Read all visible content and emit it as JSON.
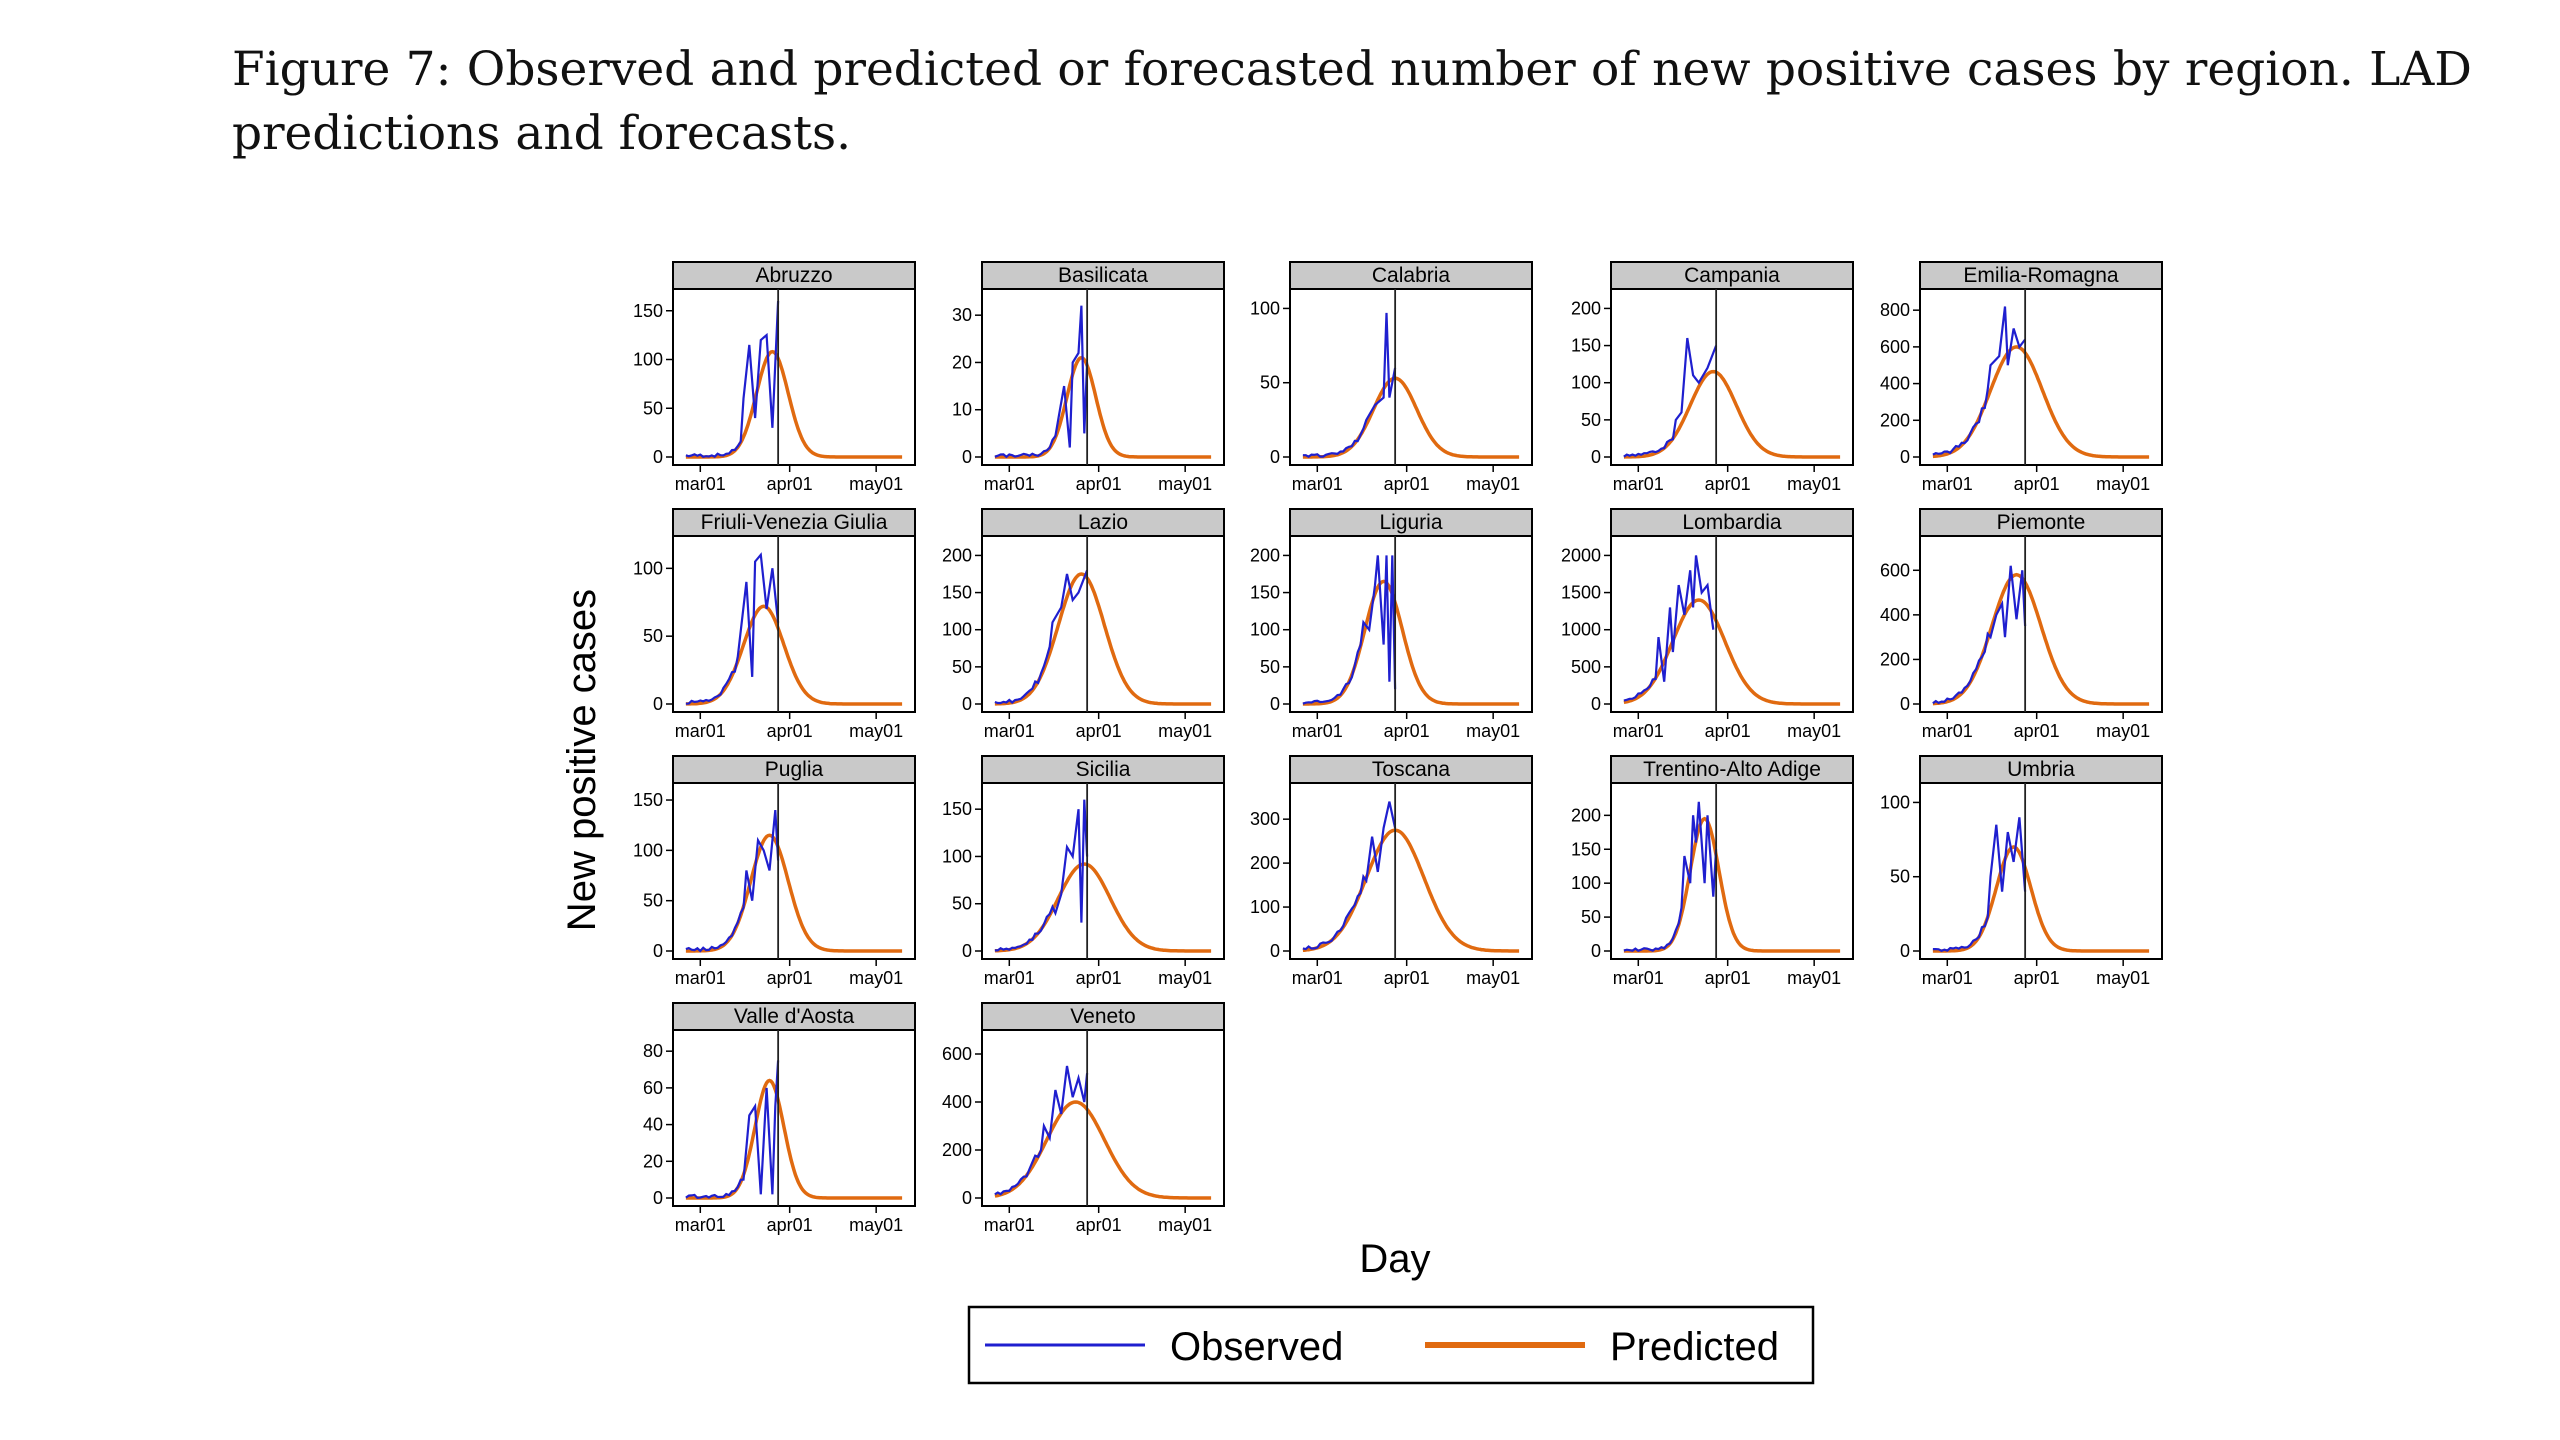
{
  "caption": {
    "text": "Figure 7: Observed and predicted or forecasted number of new positive cases by region. LAD predictions and forecasts."
  },
  "colors": {
    "observed": "#1f1fcf",
    "predicted": "#e06a10",
    "strip_fill": "#c9c9c9",
    "vline": "#222222"
  },
  "chart_data": {
    "type": "line",
    "xlabel": "Day",
    "ylabel": "New positive cases",
    "x_domain": [
      "2020-02-24",
      "2020-05-11"
    ],
    "x_ticks": [
      {
        "date": "2020-03-01",
        "label": "mar01"
      },
      {
        "date": "2020-04-01",
        "label": "apr01"
      },
      {
        "date": "2020-05-01",
        "label": "may01"
      }
    ],
    "vertical_line_date": "2020-03-28",
    "legend": {
      "position": "bottom",
      "entries": [
        "Observed",
        "Predicted"
      ]
    },
    "panels": [
      {
        "region": "Abruzzo",
        "ylim": [
          0,
          160
        ],
        "yticks": [
          0,
          50,
          100,
          150
        ],
        "vline": "2020-03-28",
        "pred_peak_date": "2020-03-26",
        "pred_peak": 108,
        "pred_sigma": 5.5,
        "observed_peaks": [
          [
            "2020-03-16",
            60
          ],
          [
            "2020-03-18",
            115
          ],
          [
            "2020-03-20",
            40
          ],
          [
            "2020-03-22",
            120
          ],
          [
            "2020-03-24",
            125
          ],
          [
            "2020-03-26",
            30
          ],
          [
            "2020-03-28",
            160
          ]
        ]
      },
      {
        "region": "Basilicata",
        "ylim": [
          0,
          33
        ],
        "yticks": [
          0,
          10,
          20,
          30
        ],
        "vline": "2020-03-28",
        "pred_peak_date": "2020-03-26",
        "pred_peak": 21,
        "pred_sigma": 5,
        "observed_peaks": [
          [
            "2020-03-18",
            8
          ],
          [
            "2020-03-20",
            15
          ],
          [
            "2020-03-22",
            2
          ],
          [
            "2020-03-23",
            20
          ],
          [
            "2020-03-25",
            22
          ],
          [
            "2020-03-26",
            32
          ],
          [
            "2020-03-27",
            5
          ],
          [
            "2020-03-28",
            20
          ]
        ]
      },
      {
        "region": "Calabria",
        "ylim": [
          0,
          105
        ],
        "yticks": [
          0,
          50,
          100
        ],
        "vline": "2020-03-28",
        "pred_peak_date": "2020-03-28",
        "pred_peak": 53,
        "pred_sigma": 7.5,
        "observed_peaks": [
          [
            "2020-03-18",
            25
          ],
          [
            "2020-03-21",
            35
          ],
          [
            "2020-03-24",
            40
          ],
          [
            "2020-03-25",
            97
          ],
          [
            "2020-03-26",
            40
          ],
          [
            "2020-03-28",
            60
          ]
        ]
      },
      {
        "region": "Campania",
        "ylim": [
          0,
          210
        ],
        "yticks": [
          0,
          50,
          100,
          150,
          200
        ],
        "vline": "2020-03-28",
        "pred_peak_date": "2020-03-27",
        "pred_peak": 115,
        "pred_sigma": 8,
        "observed_peaks": [
          [
            "2020-03-14",
            50
          ],
          [
            "2020-03-16",
            60
          ],
          [
            "2020-03-18",
            160
          ],
          [
            "2020-03-20",
            110
          ],
          [
            "2020-03-22",
            100
          ],
          [
            "2020-03-25",
            120
          ],
          [
            "2020-03-28",
            150
          ]
        ]
      },
      {
        "region": "Emilia-Romagna",
        "ylim": [
          0,
          850
        ],
        "yticks": [
          0,
          200,
          400,
          600,
          800
        ],
        "vline": "2020-03-28",
        "pred_peak_date": "2020-03-25",
        "pred_peak": 600,
        "pred_sigma": 9,
        "observed_peaks": [
          [
            "2020-03-16",
            500
          ],
          [
            "2020-03-19",
            550
          ],
          [
            "2020-03-21",
            820
          ],
          [
            "2020-03-22",
            500
          ],
          [
            "2020-03-24",
            700
          ],
          [
            "2020-03-26",
            600
          ],
          [
            "2020-03-28",
            640
          ]
        ]
      },
      {
        "region": "Friuli-Venezia Giulia",
        "ylim": [
          0,
          115
        ],
        "yticks": [
          0,
          50,
          100
        ],
        "vline": "2020-03-28",
        "pred_peak_date": "2020-03-23",
        "pred_peak": 72,
        "pred_sigma": 7,
        "observed_peaks": [
          [
            "2020-03-14",
            35
          ],
          [
            "2020-03-17",
            90
          ],
          [
            "2020-03-19",
            20
          ],
          [
            "2020-03-20",
            105
          ],
          [
            "2020-03-22",
            110
          ],
          [
            "2020-03-24",
            70
          ],
          [
            "2020-03-26",
            100
          ],
          [
            "2020-03-28",
            60
          ]
        ]
      },
      {
        "region": "Lazio",
        "ylim": [
          0,
          210
        ],
        "yticks": [
          0,
          50,
          100,
          150,
          200
        ],
        "vline": "2020-03-28",
        "pred_peak_date": "2020-03-26",
        "pred_peak": 175,
        "pred_sigma": 8,
        "observed_peaks": [
          [
            "2020-03-16",
            110
          ],
          [
            "2020-03-19",
            130
          ],
          [
            "2020-03-21",
            175
          ],
          [
            "2020-03-23",
            140
          ],
          [
            "2020-03-25",
            150
          ],
          [
            "2020-03-28",
            180
          ]
        ]
      },
      {
        "region": "Liguria",
        "ylim": [
          0,
          210
        ],
        "yticks": [
          0,
          50,
          100,
          150,
          200
        ],
        "vline": "2020-03-28",
        "pred_peak_date": "2020-03-24",
        "pred_peak": 165,
        "pred_sigma": 6.5,
        "observed_peaks": [
          [
            "2020-03-17",
            110
          ],
          [
            "2020-03-19",
            100
          ],
          [
            "2020-03-21",
            160
          ],
          [
            "2020-03-22",
            200
          ],
          [
            "2020-03-24",
            80
          ],
          [
            "2020-03-25",
            200
          ],
          [
            "2020-03-26",
            30
          ],
          [
            "2020-03-27",
            200
          ],
          [
            "2020-03-28",
            20
          ]
        ]
      },
      {
        "region": "Lombardia",
        "ylim": [
          0,
          2100
        ],
        "yticks": [
          0,
          500,
          1000,
          1500,
          2000
        ],
        "vline": "2020-03-28",
        "pred_peak_date": "2020-03-22",
        "pred_peak": 1400,
        "pred_sigma": 9,
        "observed_peaks": [
          [
            "2020-03-08",
            900
          ],
          [
            "2020-03-10",
            300
          ],
          [
            "2020-03-12",
            1300
          ],
          [
            "2020-03-13",
            700
          ],
          [
            "2020-03-15",
            1600
          ],
          [
            "2020-03-17",
            1200
          ],
          [
            "2020-03-19",
            1800
          ],
          [
            "2020-03-20",
            1300
          ],
          [
            "2020-03-21",
            2000
          ],
          [
            "2020-03-23",
            1500
          ],
          [
            "2020-03-25",
            1600
          ],
          [
            "2020-03-27",
            1000
          ]
        ]
      },
      {
        "region": "Piemonte",
        "ylim": [
          0,
          700
        ],
        "yticks": [
          0,
          200,
          400,
          600
        ],
        "vline": "2020-03-28",
        "pred_peak_date": "2020-03-25",
        "pred_peak": 580,
        "pred_sigma": 8.5,
        "observed_peaks": [
          [
            "2020-03-16",
            300
          ],
          [
            "2020-03-18",
            400
          ],
          [
            "2020-03-20",
            450
          ],
          [
            "2020-03-21",
            300
          ],
          [
            "2020-03-23",
            620
          ],
          [
            "2020-03-25",
            380
          ],
          [
            "2020-03-27",
            600
          ],
          [
            "2020-03-28",
            350
          ]
        ]
      },
      {
        "region": "Puglia",
        "ylim": [
          0,
          155
        ],
        "yticks": [
          0,
          50,
          100,
          150
        ],
        "vline": "2020-03-28",
        "pred_peak_date": "2020-03-25",
        "pred_peak": 115,
        "pred_sigma": 6.5,
        "observed_peaks": [
          [
            "2020-03-17",
            80
          ],
          [
            "2020-03-19",
            50
          ],
          [
            "2020-03-21",
            110
          ],
          [
            "2020-03-23",
            100
          ],
          [
            "2020-03-25",
            80
          ],
          [
            "2020-03-27",
            140
          ],
          [
            "2020-03-28",
            90
          ]
        ]
      },
      {
        "region": "Sicilia",
        "ylim": [
          0,
          165
        ],
        "yticks": [
          0,
          50,
          100,
          150
        ],
        "vline": "2020-03-28",
        "pred_peak_date": "2020-03-27",
        "pred_peak": 92,
        "pred_sigma": 9,
        "observed_peaks": [
          [
            "2020-03-17",
            40
          ],
          [
            "2020-03-19",
            60
          ],
          [
            "2020-03-21",
            110
          ],
          [
            "2020-03-23",
            100
          ],
          [
            "2020-03-25",
            150
          ],
          [
            "2020-03-26",
            30
          ],
          [
            "2020-03-27",
            160
          ],
          [
            "2020-03-28",
            100
          ]
        ]
      },
      {
        "region": "Toscana",
        "ylim": [
          0,
          355
        ],
        "yticks": [
          0,
          100,
          200,
          300
        ],
        "vline": "2020-03-28",
        "pred_peak_date": "2020-03-28",
        "pred_peak": 275,
        "pred_sigma": 10,
        "observed_peaks": [
          [
            "2020-03-18",
            160
          ],
          [
            "2020-03-20",
            260
          ],
          [
            "2020-03-22",
            180
          ],
          [
            "2020-03-24",
            280
          ],
          [
            "2020-03-26",
            340
          ],
          [
            "2020-03-28",
            280
          ]
        ]
      },
      {
        "region": "Trentino-Alto Adige",
        "ylim": [
          0,
          230
        ],
        "yticks": [
          0,
          50,
          100,
          150,
          200
        ],
        "vline": "2020-03-28",
        "pred_peak_date": "2020-03-24",
        "pred_peak": 195,
        "pred_sigma": 5,
        "observed_peaks": [
          [
            "2020-03-17",
            140
          ],
          [
            "2020-03-19",
            100
          ],
          [
            "2020-03-20",
            200
          ],
          [
            "2020-03-21",
            160
          ],
          [
            "2020-03-22",
            220
          ],
          [
            "2020-03-24",
            100
          ],
          [
            "2020-03-25",
            200
          ],
          [
            "2020-03-27",
            80
          ],
          [
            "2020-03-28",
            150
          ]
        ]
      },
      {
        "region": "Umbria",
        "ylim": [
          0,
          105
        ],
        "yticks": [
          0,
          50,
          100
        ],
        "vline": "2020-03-28",
        "pred_peak_date": "2020-03-24",
        "pred_peak": 70,
        "pred_sigma": 6,
        "observed_peaks": [
          [
            "2020-03-16",
            50
          ],
          [
            "2020-03-18",
            85
          ],
          [
            "2020-03-20",
            40
          ],
          [
            "2020-03-22",
            80
          ],
          [
            "2020-03-24",
            60
          ],
          [
            "2020-03-26",
            90
          ],
          [
            "2020-03-28",
            40
          ]
        ]
      },
      {
        "region": "Valle d'Aosta",
        "ylim": [
          0,
          85
        ],
        "yticks": [
          0,
          20,
          40,
          60,
          80
        ],
        "vline": "2020-03-28",
        "pred_peak_date": "2020-03-25",
        "pred_peak": 64,
        "pred_sigma": 5,
        "observed_peaks": [
          [
            "2020-03-16",
            10
          ],
          [
            "2020-03-18",
            45
          ],
          [
            "2020-03-20",
            50
          ],
          [
            "2020-03-22",
            2
          ],
          [
            "2020-03-24",
            60
          ],
          [
            "2020-03-26",
            2
          ],
          [
            "2020-03-27",
            50
          ],
          [
            "2020-03-28",
            75
          ]
        ]
      },
      {
        "region": "Veneto",
        "ylim": [
          0,
          650
        ],
        "yticks": [
          0,
          200,
          400,
          600
        ],
        "vline": "2020-03-28",
        "pred_peak_date": "2020-03-24",
        "pred_peak": 400,
        "pred_sigma": 10,
        "observed_peaks": [
          [
            "2020-03-13",
            300
          ],
          [
            "2020-03-15",
            250
          ],
          [
            "2020-03-17",
            450
          ],
          [
            "2020-03-19",
            350
          ],
          [
            "2020-03-21",
            550
          ],
          [
            "2020-03-23",
            420
          ],
          [
            "2020-03-25",
            500
          ],
          [
            "2020-03-27",
            400
          ],
          [
            "2020-03-28",
            520
          ]
        ]
      }
    ]
  }
}
